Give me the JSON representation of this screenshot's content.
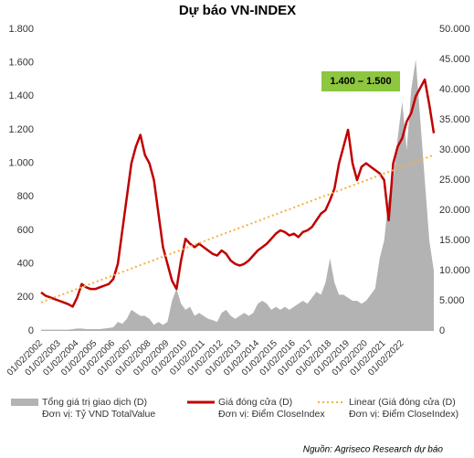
{
  "chart_data": {
    "type": "line",
    "title": "Dự báo VN-INDEX",
    "source": "Nguồn: Agriseco Research dự báo",
    "annotation": "1.400 – 1.500",
    "categories": [
      "01/02/2002",
      null,
      null,
      null,
      "01/02/2003",
      null,
      null,
      null,
      "01/02/2004",
      null,
      null,
      null,
      "01/02/2005",
      null,
      null,
      null,
      "01/02/2006",
      null,
      null,
      null,
      "01/02/2007",
      null,
      null,
      null,
      "01/02/2008",
      null,
      null,
      null,
      "01/02/2009",
      null,
      null,
      null,
      "01/02/2010",
      null,
      null,
      null,
      "01/02/2011",
      null,
      null,
      null,
      "01/02/2012",
      null,
      null,
      null,
      "01/02/2013",
      null,
      null,
      null,
      "01/02/2014",
      null,
      null,
      null,
      "01/02/2015",
      null,
      null,
      null,
      "01/02/2016",
      null,
      null,
      null,
      "01/02/2017",
      null,
      null,
      null,
      "01/02/2018",
      null,
      null,
      null,
      "01/02/2019",
      null,
      null,
      null,
      "01/02/2020",
      null,
      null,
      null,
      "01/02/2021",
      null,
      null,
      null,
      "01/02/2022",
      null,
      null,
      null,
      null,
      null,
      null,
      null
    ],
    "series": [
      {
        "name": "Tổng giá trị giao dịch (D)",
        "unit": "Đơn vị: Tỷ VND TotalValue",
        "color": "#b3b3b3",
        "axis": "y2",
        "kind": "area",
        "values": [
          200,
          200,
          200,
          200,
          200,
          200,
          200,
          300,
          400,
          400,
          300,
          300,
          300,
          300,
          400,
          500,
          600,
          1500,
          1200,
          2000,
          3500,
          3000,
          2500,
          2500,
          2000,
          1000,
          1500,
          1000,
          1500,
          5000,
          7000,
          4500,
          3500,
          4000,
          2500,
          3000,
          2500,
          2000,
          1800,
          1500,
          3000,
          3500,
          2500,
          2000,
          2500,
          3000,
          2500,
          3000,
          4500,
          5000,
          4500,
          3500,
          4000,
          3500,
          4000,
          3500,
          4000,
          4500,
          5000,
          4500,
          5500,
          6500,
          6000,
          8000,
          12000,
          8000,
          6000,
          6000,
          5500,
          5000,
          5000,
          4500,
          5000,
          6000,
          7000,
          12000,
          15000,
          22000,
          25000,
          32000,
          38000,
          30000,
          40000,
          45000,
          35000,
          25000,
          15000,
          10000
        ]
      },
      {
        "name": "Giá đóng cửa (D)",
        "unit": "Đơn vị: Điểm CloseIndex",
        "color": "#c00000",
        "kind": "line",
        "values": [
          230,
          210,
          200,
          190,
          180,
          170,
          160,
          145,
          200,
          280,
          260,
          250,
          250,
          260,
          270,
          280,
          310,
          400,
          600,
          800,
          1000,
          1100,
          1170,
          1050,
          1000,
          900,
          700,
          500,
          400,
          300,
          250,
          420,
          550,
          520,
          500,
          520,
          500,
          480,
          460,
          450,
          480,
          460,
          420,
          400,
          390,
          400,
          420,
          450,
          480,
          500,
          520,
          550,
          580,
          600,
          590,
          570,
          580,
          560,
          590,
          600,
          620,
          660,
          700,
          720,
          780,
          850,
          1000,
          1100,
          1200,
          1000,
          900,
          980,
          1000,
          980,
          960,
          940,
          900,
          660,
          1000,
          1100,
          1150,
          1250,
          1300,
          1400,
          1450,
          1500,
          1350,
          1180
        ]
      }
    ],
    "trend": {
      "name": "Linear (Giá đóng cửa (D)",
      "unit": "Đơn vị: Điểm CloseIndex)",
      "color": "#f5b041",
      "start": 170,
      "end": 1050
    },
    "ylim": [
      0,
      1800
    ],
    "yticks": [
      0,
      200,
      400,
      600,
      800,
      {
        "value": 1000,
        "label": "1.000"
      },
      {
        "value": 1200,
        "label": "1.200"
      },
      {
        "value": 1400,
        "label": "1.400"
      },
      {
        "value": 1600,
        "label": "1.600"
      },
      {
        "value": 1800,
        "label": "1.800"
      }
    ],
    "y2lim": [
      0,
      50000
    ],
    "y2ticks": [
      0,
      {
        "value": 5000,
        "label": "5.000"
      },
      {
        "value": 10000,
        "label": "10.000"
      },
      {
        "value": 15000,
        "label": "15.000"
      },
      {
        "value": 20000,
        "label": "20.000"
      },
      {
        "value": 25000,
        "label": "25.000"
      },
      {
        "value": 30000,
        "label": "30.000"
      },
      {
        "value": 35000,
        "label": "35.000"
      },
      {
        "value": 40000,
        "label": "40.000"
      },
      {
        "value": 45000,
        "label": "45.000"
      },
      {
        "value": 50000,
        "label": "50.000"
      }
    ],
    "grid": false
  }
}
